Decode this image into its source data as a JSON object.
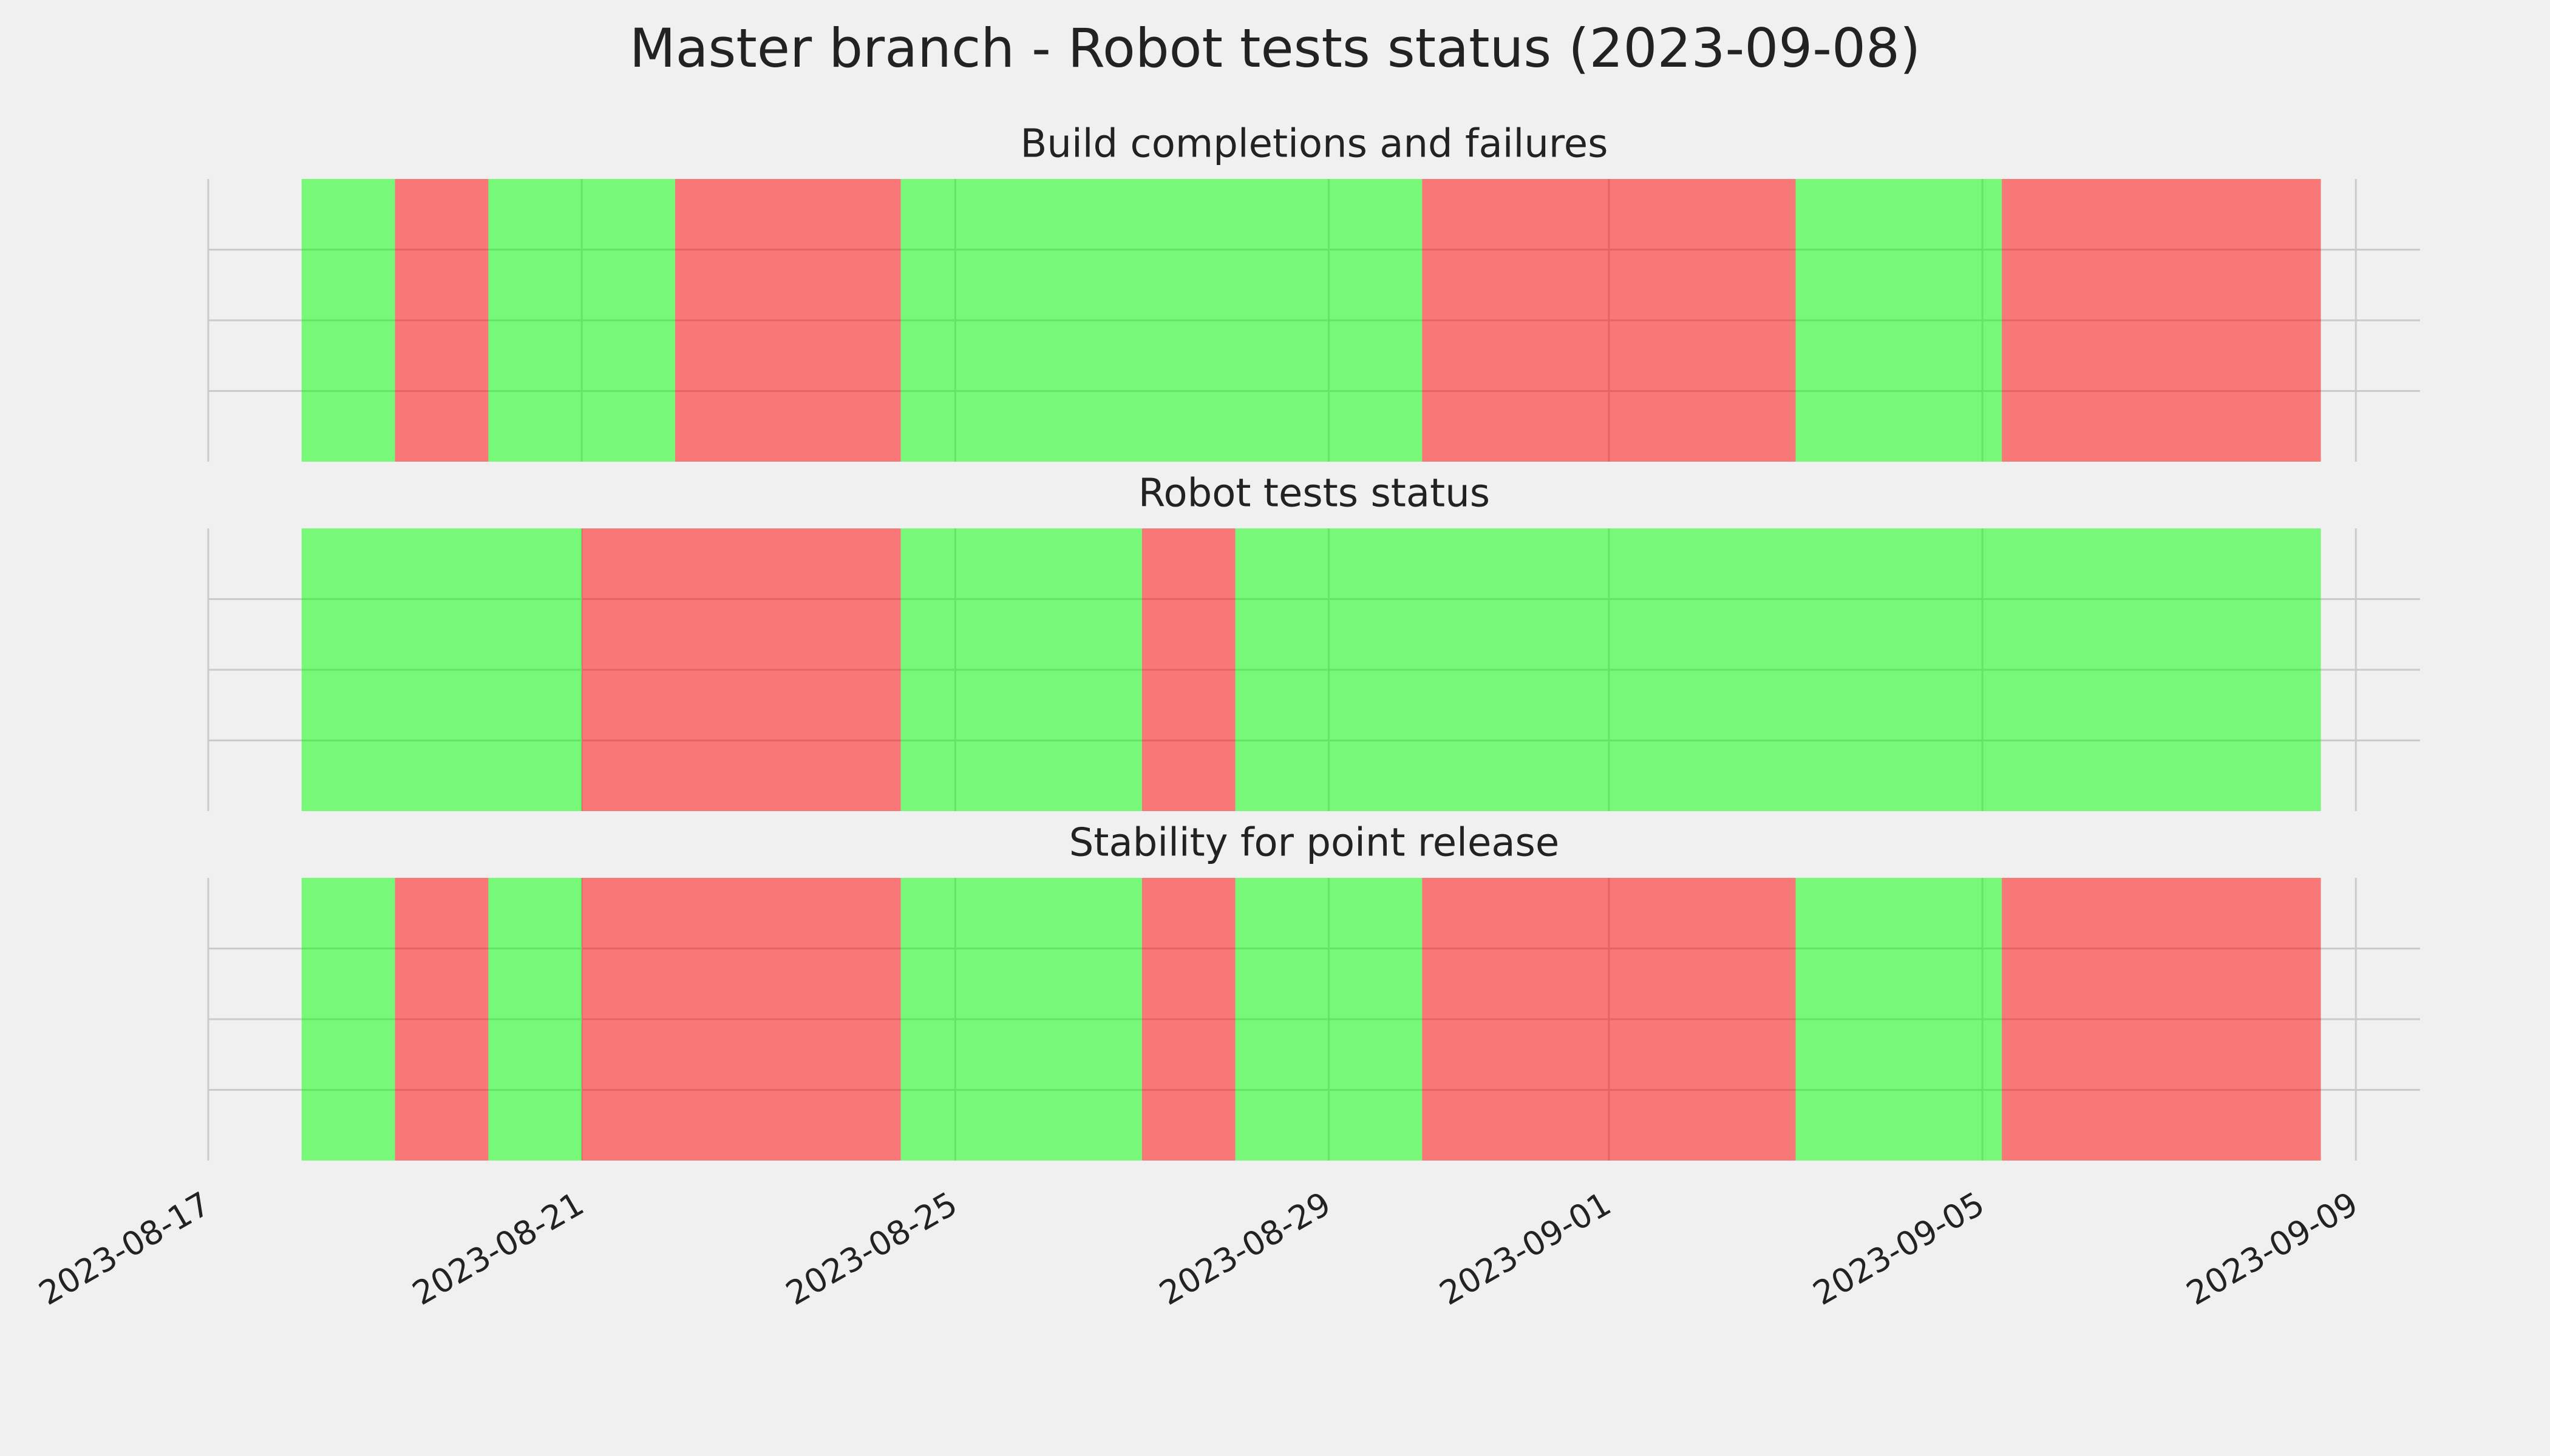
{
  "chart_data": {
    "type": "timeline",
    "title": "Master branch - Robot tests status (2023-09-08)",
    "xlim": [
      "2023-08-17",
      "2023-09-09T16:30"
    ],
    "xticks": [
      "2023-08-17",
      "2023-08-21",
      "2023-08-25",
      "2023-08-29",
      "2023-09-01",
      "2023-09-05",
      "2023-09-09"
    ],
    "ylim": [
      0,
      1
    ],
    "yticks": [
      0.25,
      0.5,
      0.75
    ],
    "grid": true,
    "alpha": 0.5,
    "panels": [
      {
        "title": "Build completions and failures",
        "segments": [
          {
            "start": "2023-08-18",
            "end": "2023-08-19",
            "color": "#00ff00"
          },
          {
            "start": "2023-08-19",
            "end": "2023-08-20",
            "color": "#ff0000"
          },
          {
            "start": "2023-08-20",
            "end": "2023-08-22",
            "color": "#00ff00"
          },
          {
            "start": "2023-08-22",
            "end": "2023-08-24T10:00",
            "color": "#ff0000"
          },
          {
            "start": "2023-08-24T10:00",
            "end": "2023-08-30",
            "color": "#00ff00"
          },
          {
            "start": "2023-08-30",
            "end": "2023-09-03",
            "color": "#ff0000"
          },
          {
            "start": "2023-09-03",
            "end": "2023-09-05T05:00",
            "color": "#00ff00"
          },
          {
            "start": "2023-09-05T05:00",
            "end": "2023-09-08T15:00",
            "color": "#ff0000"
          }
        ]
      },
      {
        "title": "Robot tests status",
        "segments": [
          {
            "start": "2023-08-18",
            "end": "2023-08-21",
            "color": "#00ff00"
          },
          {
            "start": "2023-08-21",
            "end": "2023-08-24T10:00",
            "color": "#ff0000"
          },
          {
            "start": "2023-08-24T10:00",
            "end": "2023-08-27",
            "color": "#00ff00"
          },
          {
            "start": "2023-08-27",
            "end": "2023-08-28",
            "color": "#ff0000"
          },
          {
            "start": "2023-08-28",
            "end": "2023-09-08T15:00",
            "color": "#00ff00"
          }
        ]
      },
      {
        "title": "Stability for point release",
        "segments": [
          {
            "start": "2023-08-18",
            "end": "2023-08-19",
            "color": "#00ff00"
          },
          {
            "start": "2023-08-19",
            "end": "2023-08-20",
            "color": "#ff0000"
          },
          {
            "start": "2023-08-20",
            "end": "2023-08-21",
            "color": "#00ff00"
          },
          {
            "start": "2023-08-21",
            "end": "2023-08-24T10:00",
            "color": "#ff0000"
          },
          {
            "start": "2023-08-24T10:00",
            "end": "2023-08-27",
            "color": "#00ff00"
          },
          {
            "start": "2023-08-27",
            "end": "2023-08-28",
            "color": "#ff0000"
          },
          {
            "start": "2023-08-28",
            "end": "2023-08-30",
            "color": "#00ff00"
          },
          {
            "start": "2023-08-30",
            "end": "2023-09-03",
            "color": "#ff0000"
          },
          {
            "start": "2023-09-03",
            "end": "2023-09-05T05:00",
            "color": "#00ff00"
          },
          {
            "start": "2023-09-05T05:00",
            "end": "2023-09-08T15:00",
            "color": "#ff0000"
          }
        ]
      }
    ]
  }
}
